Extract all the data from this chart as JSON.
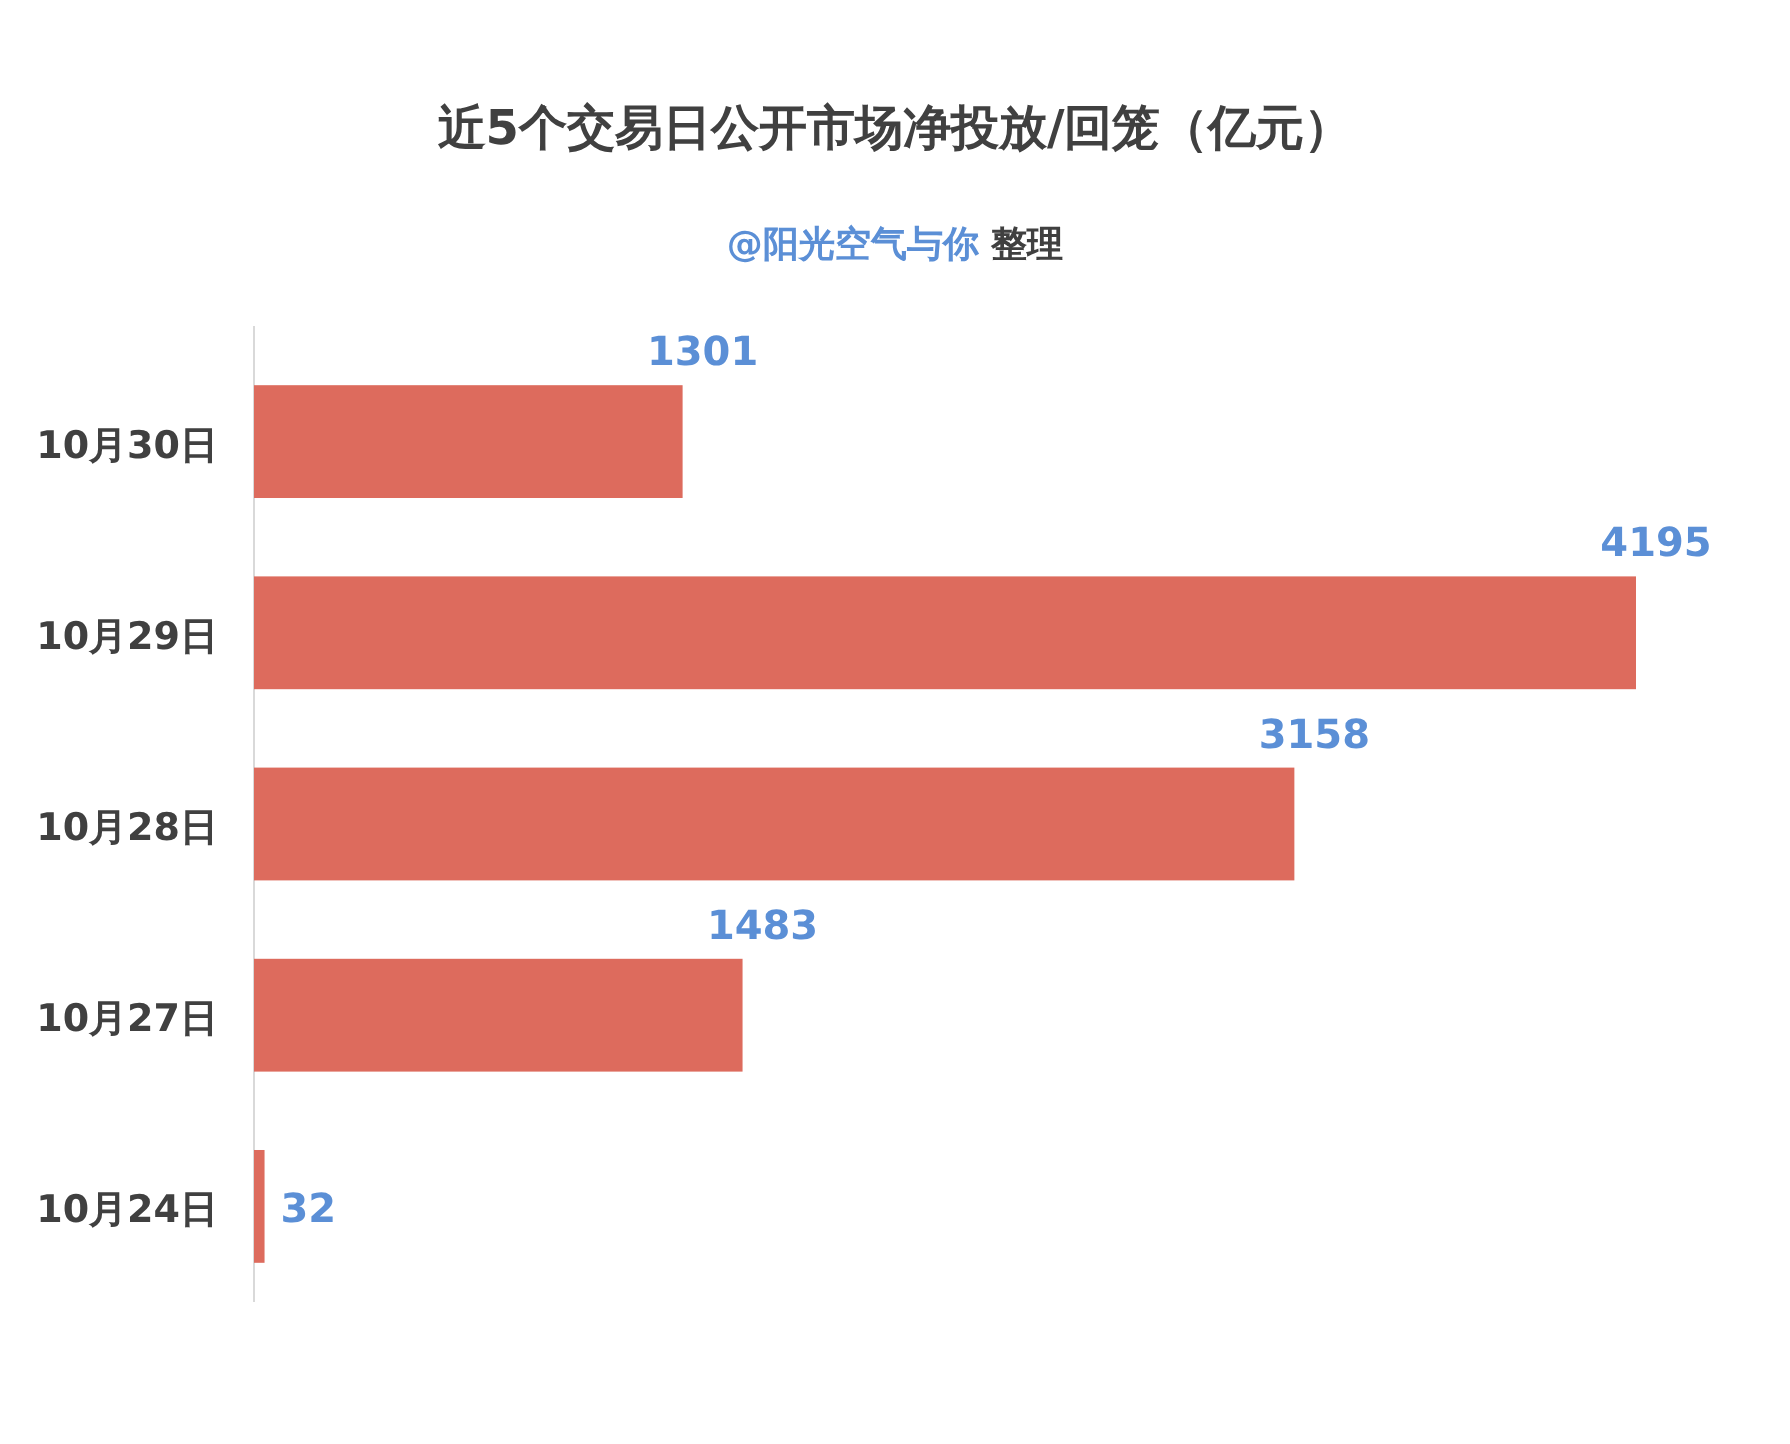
{
  "chart_data": {
    "type": "bar",
    "orientation": "horizontal",
    "title": "近5个交易日公开市场净投放/回笼（亿元）",
    "subtitle": "@阳光空气与你 整理",
    "categories": [
      "10月30日",
      "10月29日",
      "10月28日",
      "10月27日",
      "10月24日"
    ],
    "values": [
      1301,
      4195,
      3158,
      1483,
      32
    ],
    "color": "#dd6b5d",
    "data_labels": true
  }
}
